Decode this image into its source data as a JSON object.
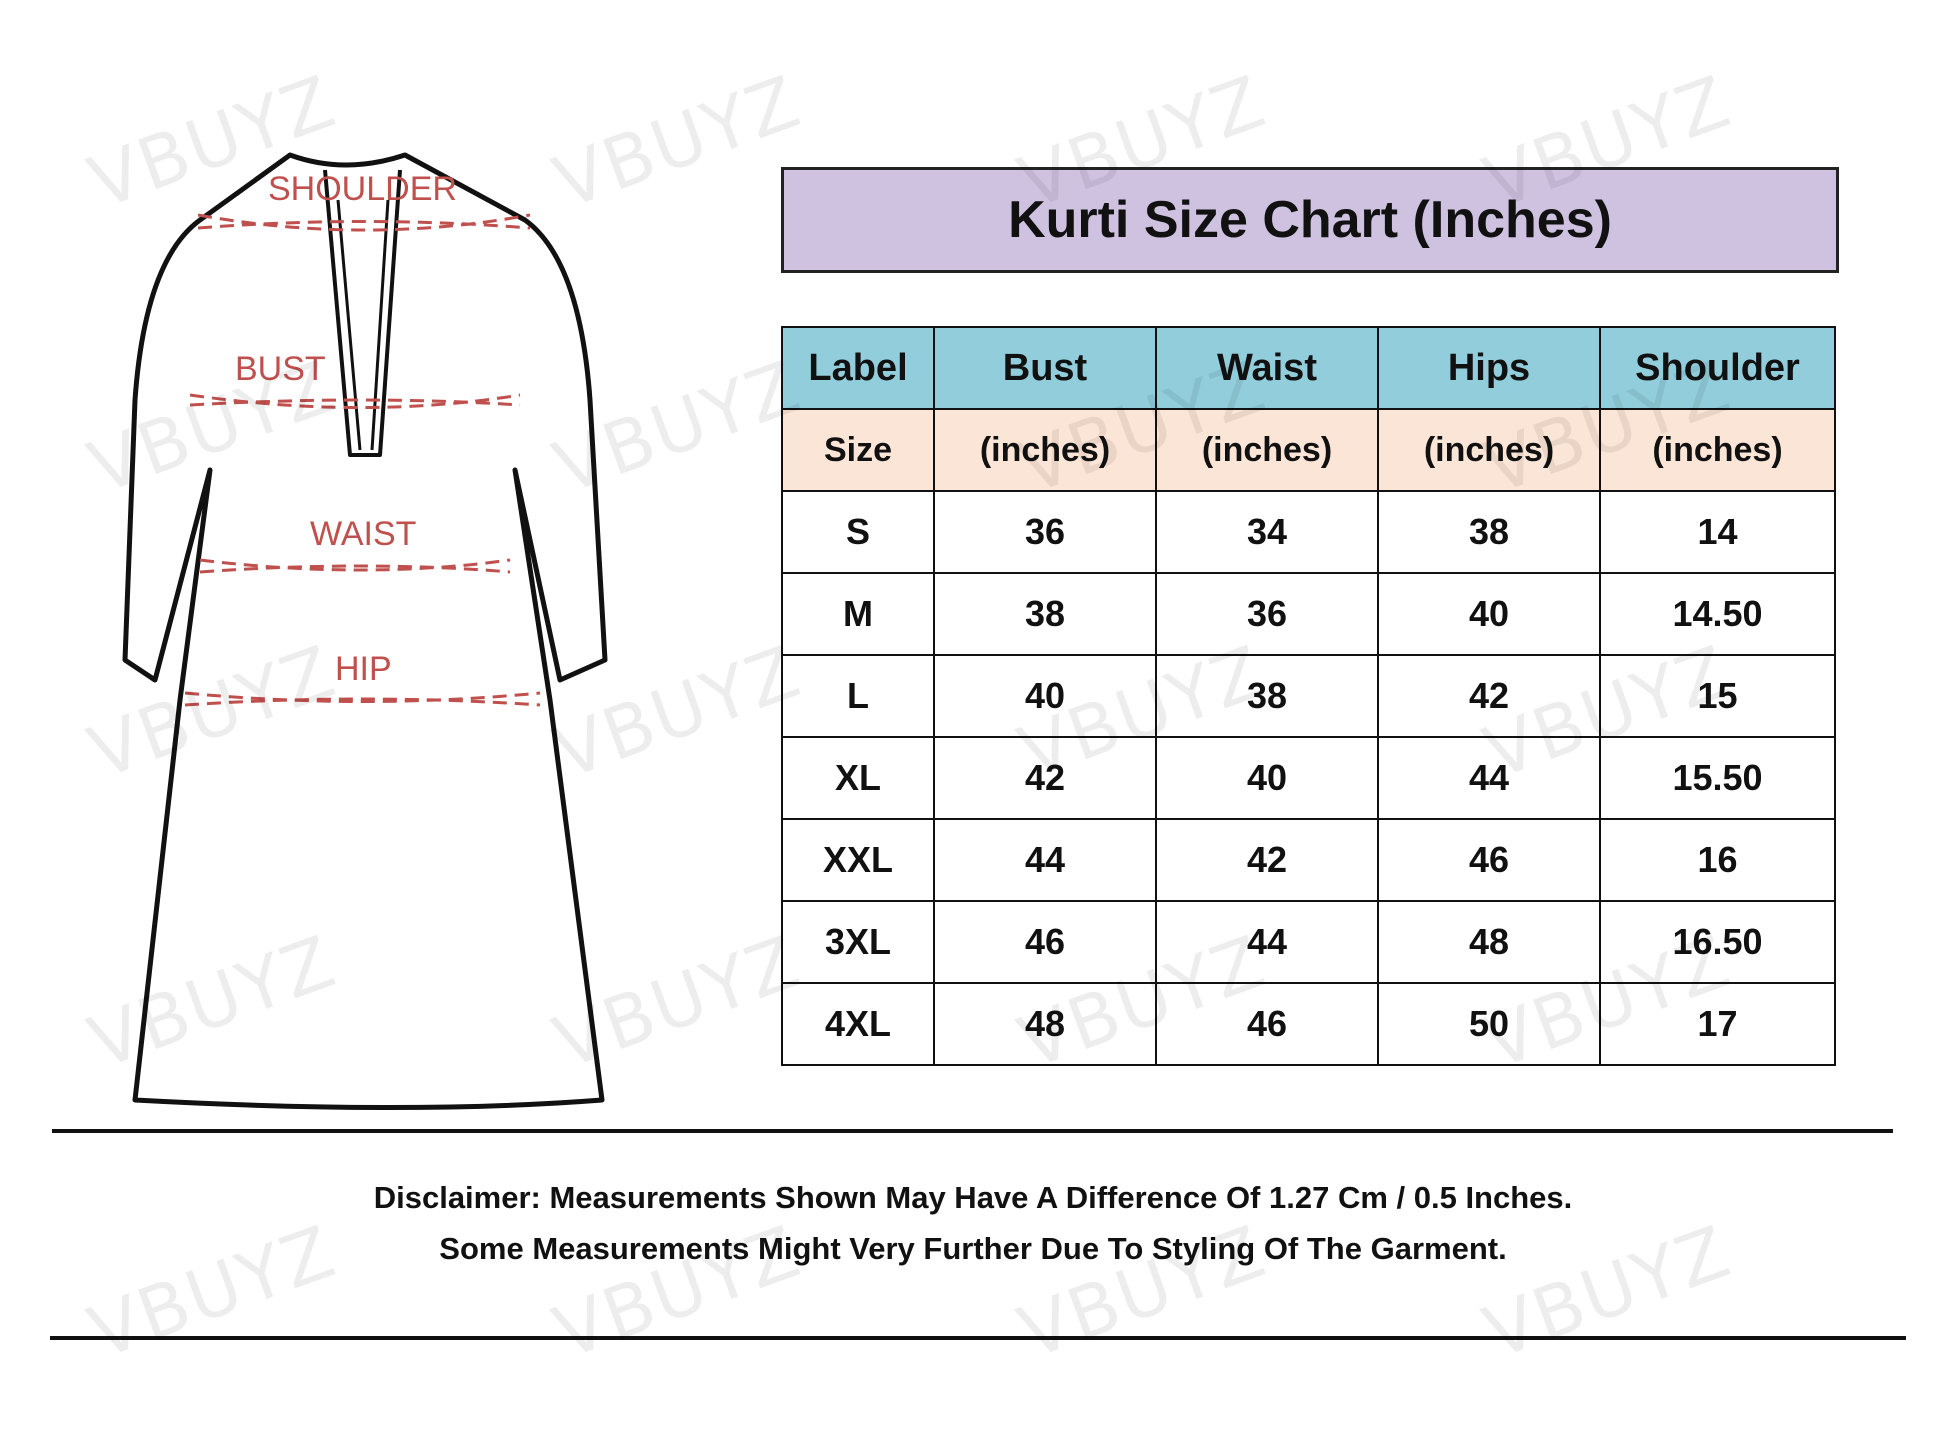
{
  "watermark": "VBUYZ",
  "diagram_labels": {
    "shoulder": "SHOULDER",
    "bust": "BUST",
    "waist": "WAIST",
    "hip": "HIP"
  },
  "title": "Kurti Size Chart (Inches)",
  "table": {
    "headers": [
      "Label",
      "Bust",
      "Waist",
      "Hips",
      "Shoulder"
    ],
    "subheaders": [
      "Size",
      "(inches)",
      "(inches)",
      "(inches)",
      "(inches)"
    ],
    "rows": [
      [
        "S",
        "36",
        "34",
        "38",
        "14"
      ],
      [
        "M",
        "38",
        "36",
        "40",
        "14.50"
      ],
      [
        "L",
        "40",
        "38",
        "42",
        "15"
      ],
      [
        "XL",
        "42",
        "40",
        "44",
        "15.50"
      ],
      [
        "XXL",
        "44",
        "42",
        "46",
        "16"
      ],
      [
        "3XL",
        "46",
        "44",
        "48",
        "16.50"
      ],
      [
        "4XL",
        "48",
        "46",
        "50",
        "17"
      ]
    ]
  },
  "disclaimer": {
    "line1": "Disclaimer: Measurements Shown May Have A Difference Of 1.27 Cm / 0.5 Inches.",
    "line2": "Some Measurements Might Very Further Due To Styling Of The Garment."
  },
  "colors": {
    "title_bg": "#cfc2e0",
    "header_bg": "#92cddc",
    "subheader_bg": "#fbe5d6",
    "measure_line": "#c0504d"
  }
}
